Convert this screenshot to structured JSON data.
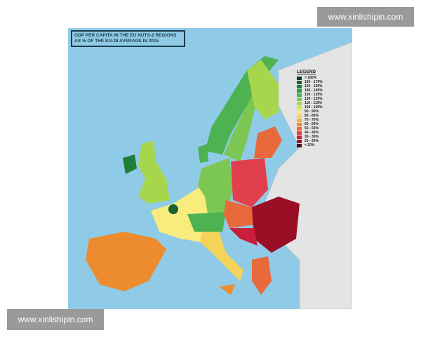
{
  "map": {
    "title_line1": "GDP PER CAPITA IN THE EU NUTS-2 REGIONS",
    "title_line2": "AS % OF THE EU-28 AVERAGE IN 2015",
    "sea_color": "#8fcbe6",
    "non_eu_color": "#e4e4e4",
    "legend": {
      "title": "LEGEND",
      "items": [
        {
          "label": "> 180%",
          "color": "#0b3d1c"
        },
        {
          "label": "160 - 179%",
          "color": "#17622d"
        },
        {
          "label": "150 - 159%",
          "color": "#1f7d38"
        },
        {
          "label": "140 - 149%",
          "color": "#2f9a45"
        },
        {
          "label": "130 - 139%",
          "color": "#4cb252"
        },
        {
          "label": "120 - 129%",
          "color": "#7cc653"
        },
        {
          "label": "110 - 119%",
          "color": "#a7d64d"
        },
        {
          "label": "100 - 109%",
          "color": "#d6e64a"
        },
        {
          "label": "90 - 99%",
          "color": "#f7ec7c"
        },
        {
          "label": "80 - 89%",
          "color": "#f5d25a"
        },
        {
          "label": "70 - 79%",
          "color": "#f2b23f"
        },
        {
          "label": "60 - 69%",
          "color": "#ec8c2e"
        },
        {
          "label": "50 - 59%",
          "color": "#e86a3a"
        },
        {
          "label": "40 - 49%",
          "color": "#e0404c"
        },
        {
          "label": "30 - 39%",
          "color": "#c91f3a"
        },
        {
          "label": "20 - 29%",
          "color": "#9a0f25"
        },
        {
          "label": "< 20%",
          "color": "#5a0616"
        }
      ]
    }
  },
  "watermarks": {
    "top": "www.xinlishipin.com",
    "bottom": "www.xinlishipin.com"
  }
}
